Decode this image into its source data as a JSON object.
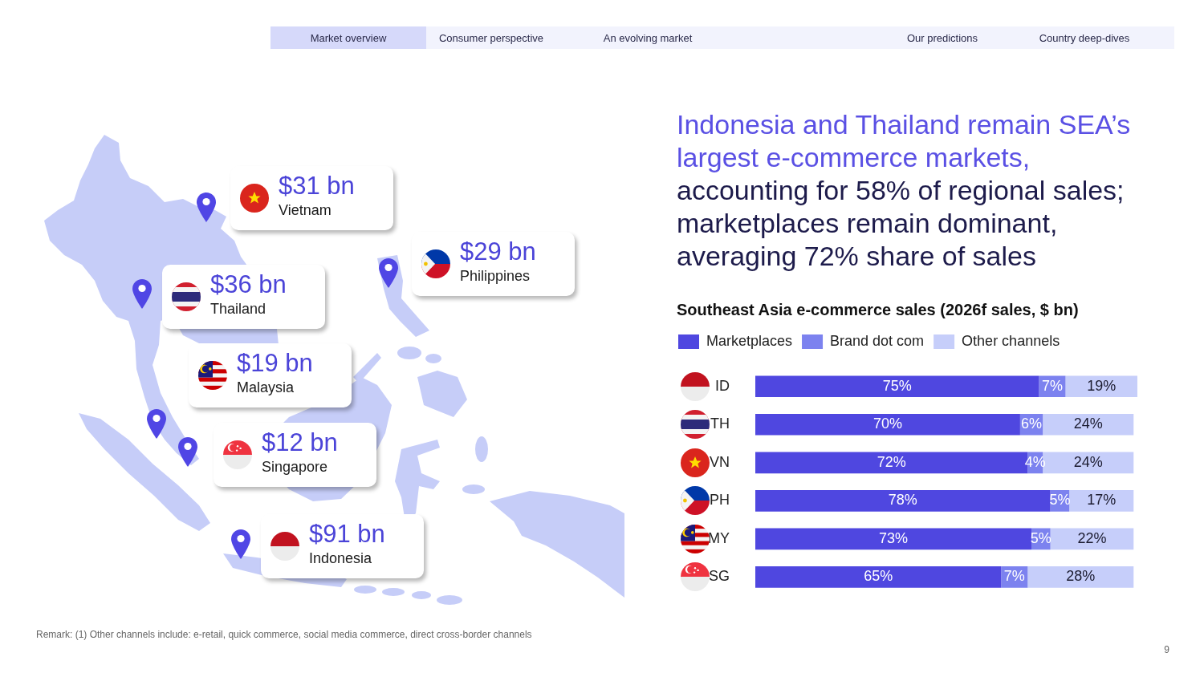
{
  "chart_data": [
    {
      "type": "other",
      "categories": [
        "Vietnam",
        "Philippines",
        "Thailand",
        "Malaysia",
        "Singapore",
        "Indonesia"
      ],
      "values": [
        31,
        29,
        36,
        19,
        12,
        91
      ],
      "value_labels": [
        "$31 bn",
        "$29 bn",
        "$36 bn",
        "$19 bn",
        "$12 bn",
        "$91 bn"
      ],
      "annotations": [
        "Market overview",
        "Consumer perspective",
        "An evolving market",
        "Our predictions",
        "Country deep-dives"
      ]
    },
    {
      "type": "bar",
      "orientation": "horizontal",
      "stacked": true,
      "title": "Indonesia and Thailand remain SEA’s largest e-commerce markets, accounting for 58% of regional sales; marketplaces remain dominant, averaging 72% share of sales",
      "subtitle": "Southeast Asia e-commerce sales (2026f sales, $ bn)",
      "categories": [
        "ID",
        "TH",
        "VN",
        "PH",
        "MY",
        "SG"
      ],
      "series": [
        {
          "name": "Marketplaces",
          "color": "#4f47e0",
          "values": [
            75,
            70,
            72,
            78,
            73,
            65
          ],
          "value_labels": [
            "75%",
            "70%",
            "72%",
            "78%",
            "73%",
            "65%"
          ]
        },
        {
          "name": "Brand dot com",
          "color": "#7c82ef",
          "values": [
            7,
            6,
            4,
            5,
            5,
            7
          ],
          "value_labels": [
            "7%",
            "6%",
            "4%",
            "5%",
            "5%",
            "7%"
          ]
        },
        {
          "name": "Other channels",
          "color": "#c6cefa",
          "values": [
            19,
            24,
            24,
            17,
            22,
            28
          ],
          "value_labels": [
            "19%",
            "24%",
            "24%",
            "17%",
            "22%",
            "28%"
          ]
        }
      ],
      "legend": "top left",
      "tick_labels": "y",
      "annotations": [
        "Remark: (1) Other channels include: e-retail, quick commerce, social media commerce, direct cross-border channels",
        "9"
      ]
    }
  ]
}
